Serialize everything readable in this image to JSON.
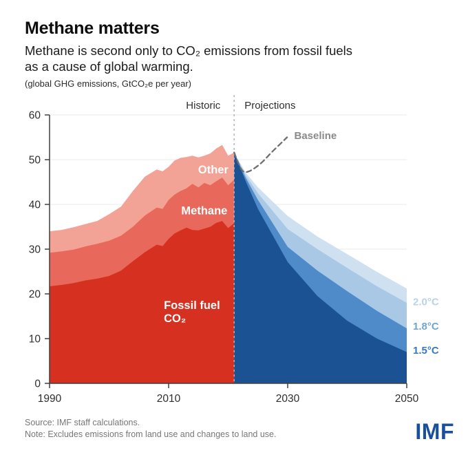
{
  "header": {
    "title": "Methane matters",
    "subtitle_line1": "Methane is second only to CO₂ emissions from fossil fuels",
    "subtitle_line2": "as a cause of global warming.",
    "unit_note": "(global GHG emissions, GtCO₂e per year)"
  },
  "footer": {
    "source": "Source: IMF staff calculations.",
    "note": "Note: Excludes emissions from land use and changes to land use.",
    "logo": "IMF",
    "logo_color": "#19509e"
  },
  "chart_data": {
    "type": "area",
    "title": "Methane matters",
    "subtitle": "Methane is second only to CO₂ emissions from fossil fuels as a cause of global warming.",
    "unit_label": "global GHG emissions, GtCO₂e per year",
    "xlim": [
      1990,
      2050
    ],
    "ylim": [
      0,
      60
    ],
    "yticks": [
      0,
      10,
      20,
      30,
      40,
      50,
      60
    ],
    "xticks": [
      1990,
      2010,
      2030,
      2050
    ],
    "grid": true,
    "divider_year": 2021,
    "colors": {
      "grid": "#eae8e2",
      "axis": "#3f3f3f",
      "tick_label": "#2e2e2e",
      "divider": "#b4b4b4",
      "baseline": "#6f6f6f",
      "background": "#ffffff"
    },
    "historic": {
      "panel_label": "Historic",
      "years": [
        1990,
        1992,
        1994,
        1996,
        1998,
        2000,
        2002,
        2004,
        2006,
        2008,
        2009,
        2010,
        2011,
        2012,
        2013,
        2014,
        2015,
        2016,
        2017,
        2018,
        2019,
        2020,
        2021
      ],
      "series": [
        {
          "key": "fossil-fuel-co2",
          "name": "Fossil fuel CO₂",
          "color": "#d63120",
          "values_cumulative": [
            21.7,
            22.0,
            22.4,
            23.0,
            23.4,
            24.0,
            25.2,
            27.3,
            29.3,
            31.0,
            30.7,
            32.3,
            33.5,
            34.2,
            34.8,
            34.3,
            34.2,
            34.6,
            35.0,
            35.9,
            36.3,
            34.7,
            35.8
          ]
        },
        {
          "key": "methane",
          "name": "Methane",
          "color": "#e8695b",
          "values_cumulative": [
            29.2,
            29.5,
            29.9,
            30.6,
            31.2,
            31.9,
            33.0,
            35.0,
            37.5,
            39.3,
            39.0,
            41.0,
            42.2,
            43.0,
            43.6,
            44.6,
            43.8,
            44.8,
            44.3,
            45.2,
            46.0,
            44.3,
            45.5
          ]
        },
        {
          "key": "other",
          "name": "Other",
          "color": "#f3a396",
          "values_cumulative": [
            34.0,
            34.3,
            34.9,
            35.6,
            36.3,
            37.8,
            39.5,
            43.0,
            46.2,
            47.8,
            47.4,
            48.4,
            49.8,
            50.4,
            50.6,
            50.9,
            50.5,
            50.9,
            51.4,
            52.5,
            53.3,
            50.9,
            51.6
          ]
        }
      ]
    },
    "projections": {
      "panel_label": "Projections",
      "years": [
        2021,
        2023,
        2025,
        2030,
        2035,
        2040,
        2045,
        2050
      ],
      "scenarios": [
        {
          "key": "upper-range",
          "label": "",
          "color": "#cfe0f1",
          "label_color": "#cfe0f1",
          "label_value": null,
          "top": [
            51.6,
            47.0,
            43.8,
            37.4,
            32.8,
            28.9,
            24.9,
            21.2
          ]
        },
        {
          "key": "c20",
          "label": "2.0°C",
          "color": "#a9c8e6",
          "label_color": "#b6d3ec",
          "label_value": 18.2,
          "top": [
            51.6,
            46.4,
            42.5,
            34.5,
            30.0,
            25.8,
            21.7,
            18.0
          ]
        },
        {
          "key": "c18",
          "label": "1.8°C",
          "color": "#4e8bc8",
          "label_color": "#6ea4d8",
          "label_value": 12.8,
          "top": [
            51.6,
            45.8,
            41.0,
            30.5,
            25.2,
            20.6,
            16.2,
            12.3
          ]
        },
        {
          "key": "c15",
          "label": "1.5°C",
          "color": "#1b5294",
          "label_color": "#3579c2",
          "label_value": 7.4,
          "top": [
            51.6,
            45.0,
            39.0,
            27.1,
            19.5,
            14.0,
            10.0,
            7.0
          ]
        }
      ]
    },
    "baseline": {
      "label": "Baseline",
      "points": [
        [
          2021,
          51.6
        ],
        [
          2022.3,
          47.7
        ],
        [
          2023.5,
          47.4
        ],
        [
          2025.5,
          49.2
        ],
        [
          2027.5,
          51.9
        ],
        [
          2029.9,
          55.0
        ]
      ]
    },
    "annotations": [
      {
        "id": "historic",
        "text": "Historic",
        "year": 2018.7,
        "value": 61.4,
        "anchor": "end",
        "color": "#2e2e2e",
        "size": 15,
        "weight": 400
      },
      {
        "id": "projections",
        "text": "Projections",
        "year": 2022.75,
        "value": 61.4,
        "anchor": "start",
        "color": "#2e2e2e",
        "size": 15,
        "weight": 400
      },
      {
        "id": "baseline-label",
        "text": "Baseline",
        "year": 2031.1,
        "value": 54.6,
        "anchor": "start",
        "color": "#8a8a8a",
        "size": 15,
        "weight": 700
      },
      {
        "id": "other-label",
        "text": "Other",
        "year": 2017.5,
        "value": 46.9,
        "anchor": "middle",
        "color": "#ffffff",
        "size": 16.5,
        "weight": 700
      },
      {
        "id": "methane-label",
        "text": "Methane",
        "year": 2016.0,
        "value": 37.8,
        "anchor": "middle",
        "color": "#ffffff",
        "size": 16.5,
        "weight": 700
      },
      {
        "id": "fossil-fuel-co2-label",
        "lines": [
          "Fossil fuel",
          "CO₂"
        ],
        "year": 2009.2,
        "value": 16.6,
        "anchor": "start",
        "color": "#ffffff",
        "size": 16.5,
        "weight": 700
      }
    ]
  }
}
